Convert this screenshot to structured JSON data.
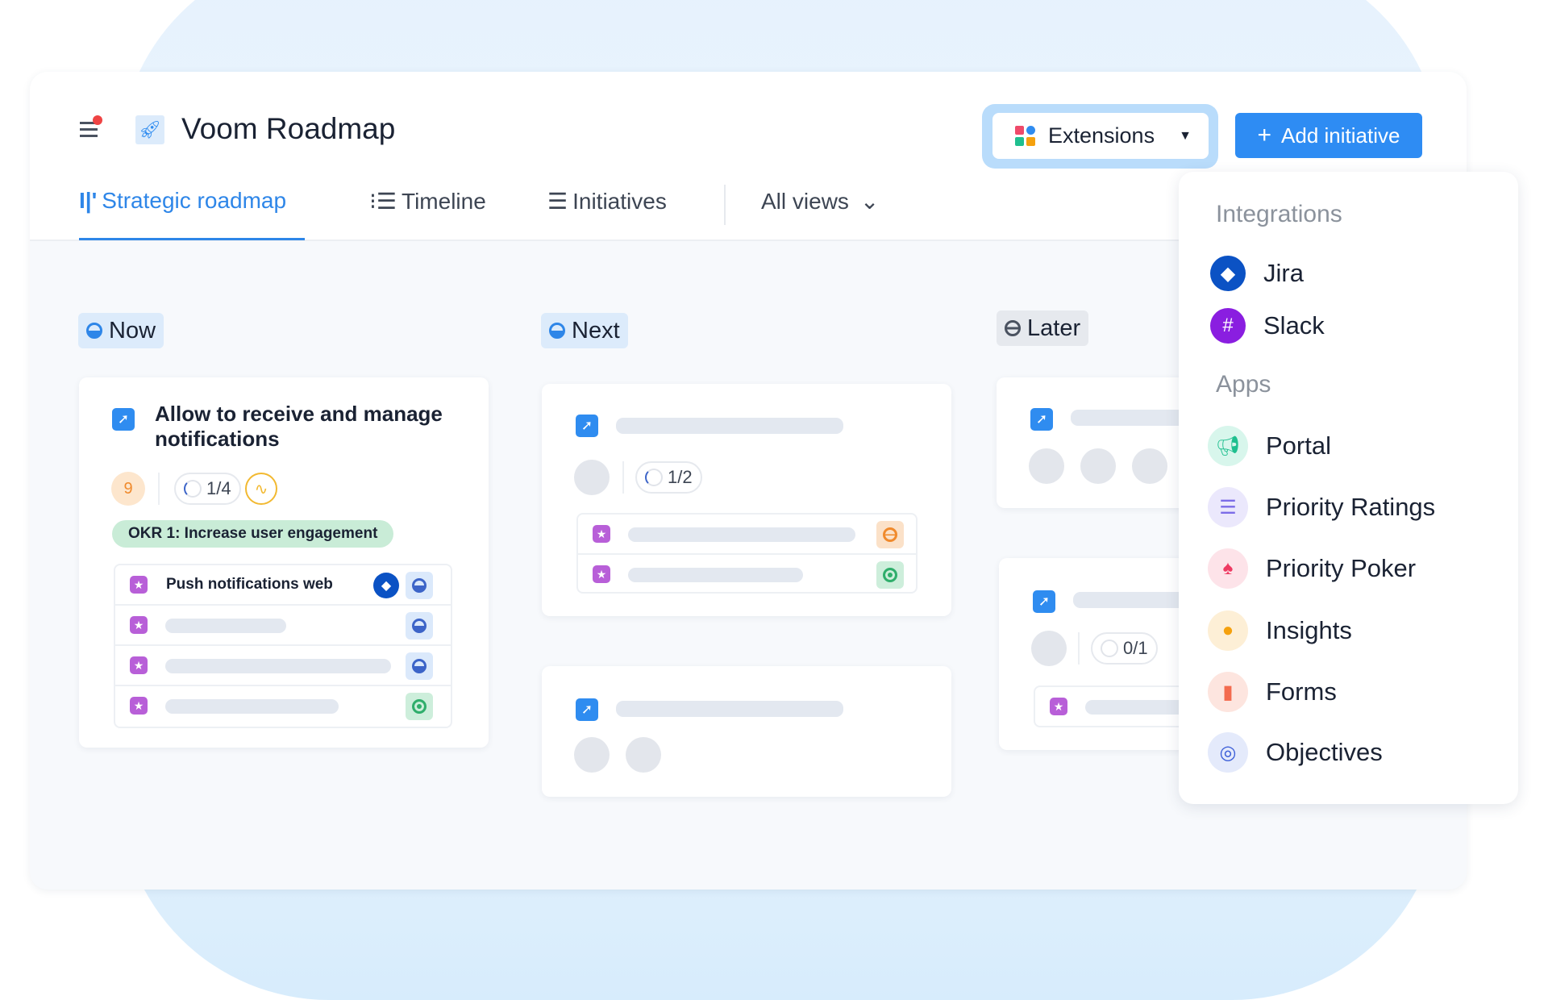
{
  "header": {
    "title": "Voom Roadmap",
    "extensions_label": "Extensions",
    "add_label": "Add initiative"
  },
  "tabs": [
    {
      "label": "Strategic roadmap",
      "active": true
    },
    {
      "label": "Timeline"
    },
    {
      "label": "Initiatives"
    },
    {
      "label": "All views"
    }
  ],
  "columns": {
    "now": "Now",
    "next": "Next",
    "later": "Later"
  },
  "card_now": {
    "title": "Allow to receive and manage notifications",
    "score": "9",
    "progress": "1/4",
    "okr": "OKR 1: Increase user engagement",
    "first_item": "Push notifications web"
  },
  "card_next": {
    "progress": "1/2"
  },
  "card_later": {
    "progress": "0/1"
  },
  "dropdown": {
    "integrations_heading": "Integrations",
    "integrations": [
      {
        "label": "Jira",
        "icon": "jira-icon",
        "color": "#0b52c4"
      },
      {
        "label": "Slack",
        "icon": "slack-icon",
        "color": "#8a1ee0"
      }
    ],
    "apps_heading": "Apps",
    "apps": [
      {
        "label": "Portal",
        "icon": "megaphone-icon",
        "color": "#1fbf8f"
      },
      {
        "label": "Priority Ratings",
        "icon": "sliders-icon",
        "color": "#7b6ce8"
      },
      {
        "label": "Priority Poker",
        "icon": "spade-icon",
        "color": "#ee3a62"
      },
      {
        "label": "Insights",
        "icon": "lightbulb-icon",
        "color": "#f5a10e"
      },
      {
        "label": "Forms",
        "icon": "document-icon",
        "color": "#f36b4f"
      },
      {
        "label": "Objectives",
        "icon": "target-icon",
        "color": "#3d5fd8"
      }
    ]
  },
  "colors": {
    "accent": "#2e86e8",
    "okr": "#c9ecd7"
  }
}
